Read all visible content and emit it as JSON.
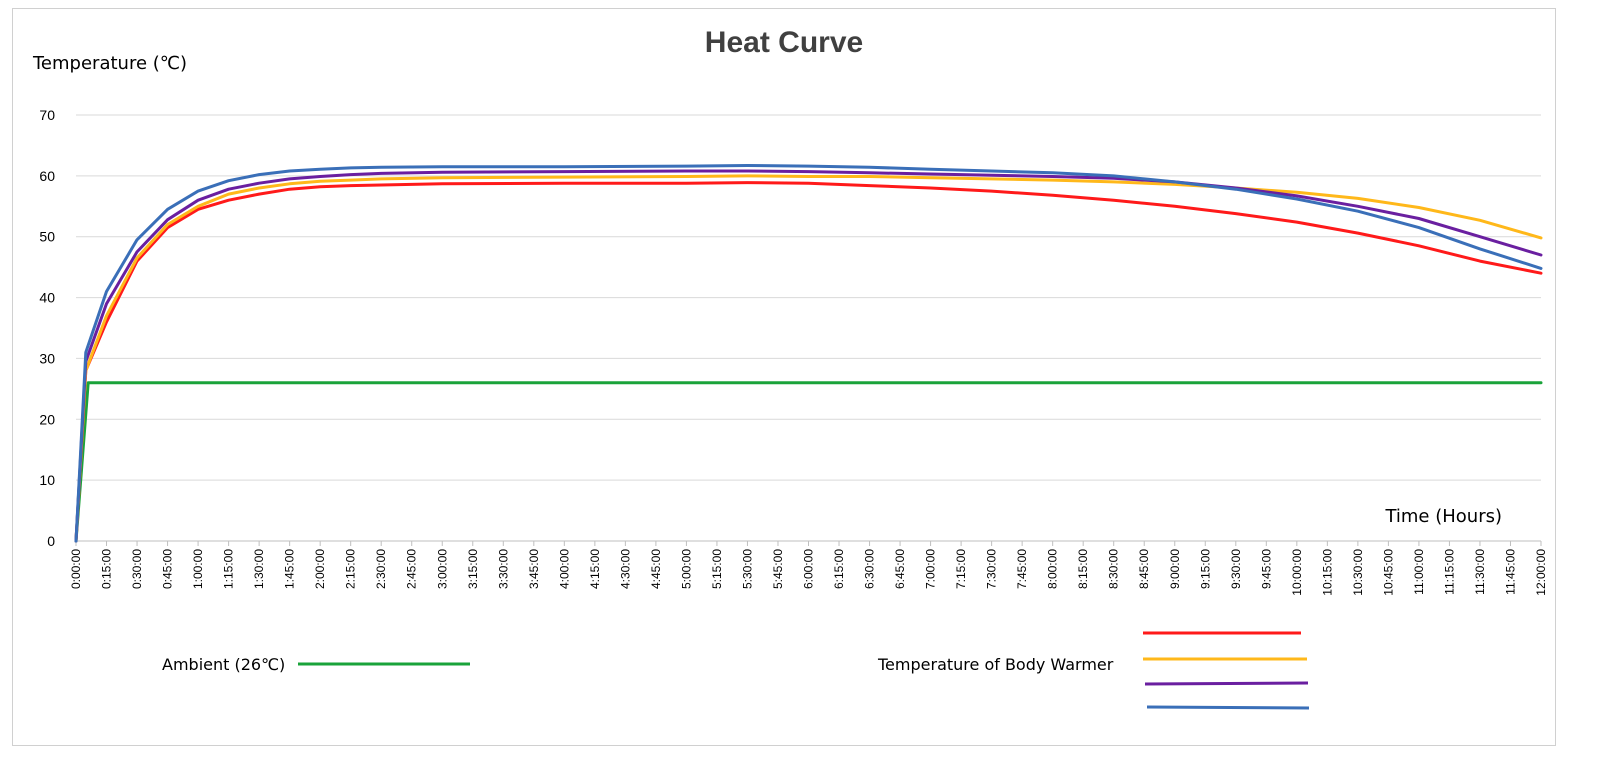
{
  "chart_data": {
    "type": "line",
    "title": "Heat Curve",
    "ylabel": "Temperature (℃)",
    "xlabel": "Time (Hours)",
    "ylim": [
      0,
      70
    ],
    "yticks": [
      0,
      10,
      20,
      30,
      40,
      50,
      60,
      70
    ],
    "grid": true,
    "x_unit": "hours",
    "x_ticks": [
      "0:00:00",
      "0:15:00",
      "0:30:00",
      "0:45:00",
      "1:00:00",
      "1:15:00",
      "1:30:00",
      "1:45:00",
      "2:00:00",
      "2:15:00",
      "2:30:00",
      "2:45:00",
      "3:00:00",
      "3:15:00",
      "3:30:00",
      "3:45:00",
      "4:00:00",
      "4:15:00",
      "4:30:00",
      "4:45:00",
      "5:00:00",
      "5:15:00",
      "5:30:00",
      "5:45:00",
      "6:00:00",
      "6:15:00",
      "6:30:00",
      "6:45:00",
      "7:00:00",
      "7:15:00",
      "7:30:00",
      "7:45:00",
      "8:00:00",
      "8:15:00",
      "8:30:00",
      "8:45:00",
      "9:00:00",
      "9:15:00",
      "9:30:00",
      "9:45:00",
      "10:00:00",
      "10:15:00",
      "10:30:00",
      "10:45:00",
      "11:00:00",
      "11:15:00",
      "11:30:00",
      "11:45:00",
      "12:00:00"
    ],
    "series": [
      {
        "name": "Ambient (26℃)",
        "color": "#1aa33a",
        "x": [
          0,
          0.1,
          12
        ],
        "values": [
          0,
          26,
          26
        ]
      },
      {
        "color": "#ff1a1a",
        "x": [
          0,
          0.08,
          0.25,
          0.5,
          0.75,
          1.0,
          1.25,
          1.5,
          1.75,
          2.0,
          2.25,
          2.5,
          3.0,
          4.0,
          5.0,
          5.5,
          6.0,
          6.5,
          7.0,
          7.5,
          8.0,
          8.5,
          9.0,
          9.5,
          10.0,
          10.5,
          11.0,
          11.5,
          12.0
        ],
        "values": [
          0,
          28,
          36,
          46,
          51.5,
          54.5,
          56,
          57,
          57.8,
          58.2,
          58.4,
          58.5,
          58.7,
          58.8,
          58.8,
          58.9,
          58.8,
          58.4,
          58,
          57.5,
          56.8,
          56,
          55,
          53.8,
          52.4,
          50.6,
          48.5,
          46,
          44
        ]
      },
      {
        "color": "#ffb81a",
        "x": [
          0,
          0.08,
          0.25,
          0.5,
          0.75,
          1.0,
          1.25,
          1.5,
          1.75,
          2.0,
          2.25,
          2.5,
          3.0,
          4.0,
          5.0,
          5.5,
          6.0,
          6.5,
          7.0,
          7.5,
          8.0,
          8.5,
          9.0,
          9.5,
          10.0,
          10.5,
          11.0,
          11.5,
          12.0
        ],
        "values": [
          0,
          28,
          37,
          46.5,
          52,
          55,
          57,
          58,
          58.7,
          59.1,
          59.3,
          59.5,
          59.7,
          59.8,
          59.9,
          60,
          59.9,
          59.9,
          59.7,
          59.5,
          59.3,
          59,
          58.6,
          58,
          57.3,
          56.3,
          54.8,
          52.7,
          49.8
        ]
      },
      {
        "color": "#6a1fa0",
        "x": [
          0,
          0.08,
          0.25,
          0.5,
          0.75,
          1.0,
          1.25,
          1.5,
          1.75,
          2.0,
          2.25,
          2.5,
          3.0,
          4.0,
          5.0,
          5.5,
          6.0,
          6.5,
          7.0,
          7.5,
          8.0,
          8.5,
          9.0,
          9.5,
          10.0,
          10.5,
          11.0,
          11.5,
          12.0
        ],
        "values": [
          0,
          29.5,
          39,
          47.5,
          52.8,
          56,
          57.8,
          58.8,
          59.5,
          59.9,
          60.2,
          60.4,
          60.6,
          60.7,
          60.8,
          60.8,
          60.7,
          60.5,
          60.3,
          60.1,
          59.9,
          59.6,
          59,
          58,
          56.7,
          55,
          53,
          50,
          47
        ]
      },
      {
        "color": "#3a6fb8",
        "x": [
          0,
          0.08,
          0.25,
          0.5,
          0.75,
          1.0,
          1.25,
          1.5,
          1.75,
          2.0,
          2.25,
          2.5,
          3.0,
          4.0,
          5.0,
          5.5,
          6.0,
          6.5,
          7.0,
          7.5,
          8.0,
          8.5,
          9.0,
          9.5,
          10.0,
          10.5,
          11.0,
          11.5,
          12.0
        ],
        "values": [
          0,
          31,
          41,
          49.5,
          54.5,
          57.5,
          59.2,
          60.2,
          60.8,
          61.1,
          61.3,
          61.4,
          61.5,
          61.5,
          61.6,
          61.7,
          61.6,
          61.4,
          61.1,
          60.8,
          60.5,
          60,
          59,
          57.8,
          56.2,
          54.2,
          51.5,
          48,
          44.8
        ]
      }
    ],
    "legend": {
      "ambient_label": "Ambient (26℃)",
      "body_warmer_label": "Temperature of Body Warmer"
    }
  }
}
